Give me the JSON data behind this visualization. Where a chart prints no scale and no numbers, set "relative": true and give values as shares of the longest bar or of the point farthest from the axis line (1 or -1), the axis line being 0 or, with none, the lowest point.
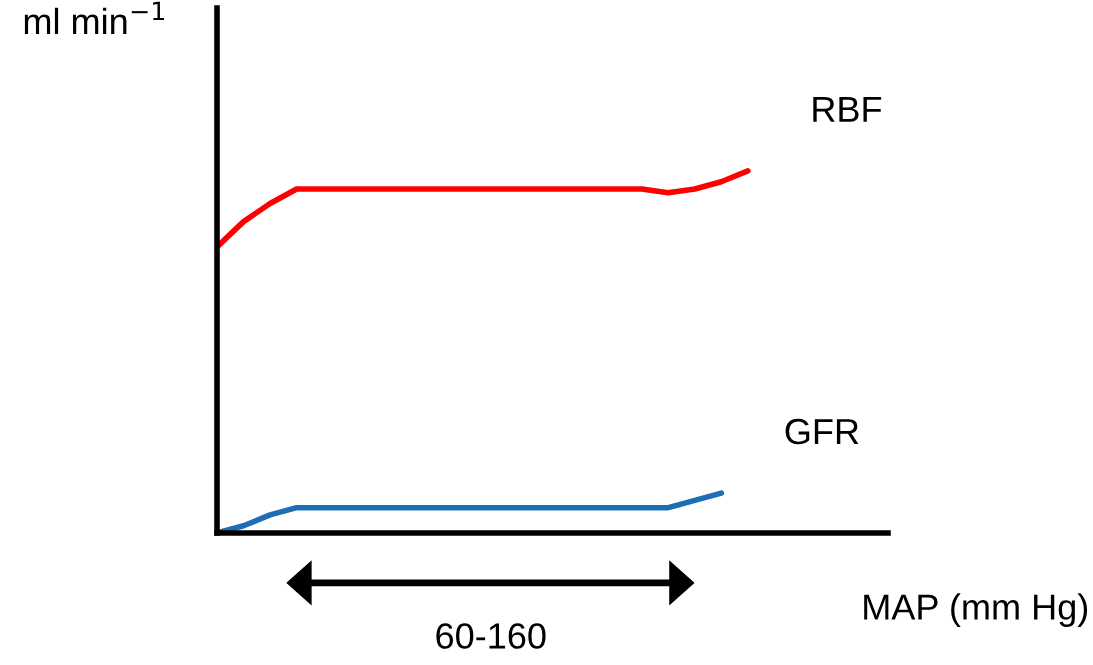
{
  "chart_data": {
    "type": "line",
    "relative": true,
    "ylabel": "ml min$^{−1}$",
    "xlabel": "MAP (mm Hg)",
    "categories": [
      null,
      null,
      null,
      null,
      null,
      null,
      null,
      null,
      null,
      null,
      null,
      null,
      null,
      null,
      null,
      null,
      null,
      null,
      null,
      null,
      null
    ],
    "series": [
      {
        "name": "RBF",
        "color": "#ff0000",
        "values": [
          0.79,
          0.86,
          0.91,
          0.95,
          0.95,
          0.95,
          0.95,
          0.95,
          0.95,
          0.95,
          0.95,
          0.95,
          0.95,
          0.95,
          0.95,
          0.95,
          0.95,
          0.94,
          0.95,
          0.97,
          1.0
        ]
      },
      {
        "name": "GFR",
        "color": "#1f6db5",
        "values": [
          0.0,
          0.02,
          0.05,
          0.07,
          0.07,
          0.07,
          0.07,
          0.07,
          0.07,
          0.07,
          0.07,
          0.07,
          0.07,
          0.07,
          0.07,
          0.07,
          0.07,
          0.07,
          0.09,
          0.11,
          null
        ]
      }
    ],
    "annotations": [
      "60-160"
    ],
    "marker": "none",
    "line_style": "solid"
  }
}
